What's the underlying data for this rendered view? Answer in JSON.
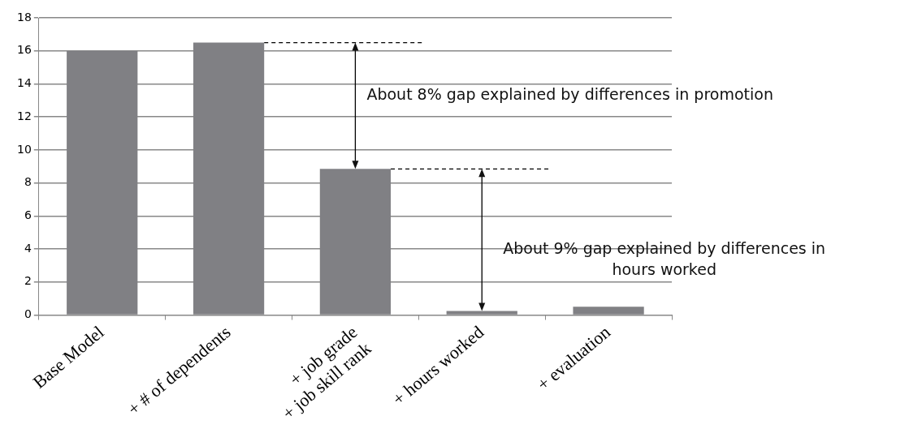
{
  "chart_data": {
    "type": "bar",
    "categories": [
      "Base Model",
      "+ # of dependents",
      "+ job grade\n+ job skill rank",
      "+ hours worked",
      "+ evaluation"
    ],
    "values": [
      16.0,
      16.5,
      8.85,
      0.25,
      0.5
    ],
    "color": "#808084",
    "ref_lines": [
      {
        "axis": "y",
        "value": 16.5,
        "color": "#000000",
        "line_style": "dashed"
      },
      {
        "axis": "y",
        "value": 8.85,
        "color": "#000000",
        "line_style": "dashed"
      }
    ],
    "ylim": [
      0,
      18
    ],
    "yticks": [
      0,
      2,
      4,
      6,
      8,
      10,
      12,
      14,
      16,
      18
    ],
    "grid": "y",
    "legend": false,
    "annotations": [
      "About 8% gap explained by differences in promotion",
      "About 9% gap explained by differences in hours worked"
    ]
  }
}
